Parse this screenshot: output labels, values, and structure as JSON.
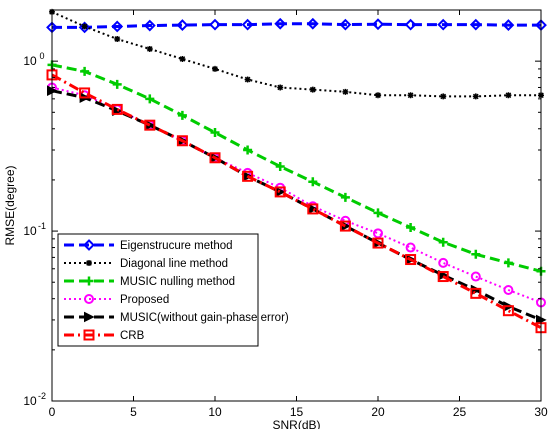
{
  "chart_data": {
    "type": "line",
    "xlabel": "SNR(dB)",
    "ylabel": "RMSE(degree)",
    "xlim": [
      0,
      30
    ],
    "ylim": [
      0.01,
      2
    ],
    "yscale": "log",
    "grid": false,
    "legend_position": "bottom-left",
    "x_ticks": [
      "0",
      "5",
      "10",
      "15",
      "20",
      "25",
      "30"
    ],
    "y_ticks": [
      {
        "value": 0.01,
        "base": "10",
        "exp": "-2"
      },
      {
        "value": 0.1,
        "base": "10",
        "exp": "-1"
      },
      {
        "value": 1,
        "base": "10",
        "exp": "0"
      }
    ],
    "series": [
      {
        "name": "Eigenstrucure method",
        "color": "#0000ff",
        "dash": "10,5",
        "marker": "diamond",
        "width": 3,
        "x": [
          0,
          2,
          4,
          6,
          8,
          10,
          12,
          14,
          16,
          18,
          20,
          22,
          24,
          26,
          28,
          30
        ],
        "y": [
          1.58,
          1.58,
          1.6,
          1.62,
          1.63,
          1.64,
          1.64,
          1.66,
          1.66,
          1.64,
          1.65,
          1.64,
          1.64,
          1.64,
          1.63,
          1.63
        ]
      },
      {
        "name": "Diagonal line method",
        "color": "#000000",
        "dash": "2,3",
        "marker": "star",
        "width": 2,
        "x": [
          0,
          2,
          4,
          6,
          8,
          10,
          12,
          14,
          16,
          18,
          20,
          22,
          24,
          26,
          28,
          30
        ],
        "y": [
          1.95,
          1.6,
          1.35,
          1.18,
          1.03,
          0.9,
          0.78,
          0.7,
          0.68,
          0.66,
          0.63,
          0.63,
          0.62,
          0.62,
          0.63,
          0.63
        ]
      },
      {
        "name": "MUSIC nulling method",
        "color": "#00cc00",
        "dash": "10,5",
        "marker": "plus",
        "width": 3,
        "x": [
          0,
          2,
          4,
          6,
          8,
          10,
          12,
          14,
          16,
          18,
          20,
          22,
          24,
          26,
          28,
          30
        ],
        "y": [
          0.95,
          0.87,
          0.73,
          0.6,
          0.48,
          0.38,
          0.3,
          0.24,
          0.195,
          0.158,
          0.128,
          0.105,
          0.086,
          0.073,
          0.065,
          0.058
        ]
      },
      {
        "name": "Proposed",
        "color": "#ff00ff",
        "dash": "2,3",
        "marker": "circle",
        "width": 2,
        "x": [
          0,
          2,
          4,
          6,
          8,
          10,
          12,
          14,
          16,
          18,
          20,
          22,
          24,
          26,
          28,
          30
        ],
        "y": [
          0.7,
          0.63,
          0.52,
          0.42,
          0.34,
          0.27,
          0.22,
          0.18,
          0.14,
          0.115,
          0.097,
          0.08,
          0.065,
          0.054,
          0.045,
          0.038
        ]
      },
      {
        "name": "MUSIC(without gain-phase error)",
        "color": "#000000",
        "dash": "10,5",
        "marker": "triangle-right",
        "width": 3,
        "x": [
          0,
          2,
          4,
          6,
          8,
          10,
          12,
          14,
          16,
          18,
          20,
          22,
          24,
          26,
          28,
          30
        ],
        "y": [
          0.67,
          0.61,
          0.51,
          0.42,
          0.34,
          0.27,
          0.21,
          0.17,
          0.135,
          0.107,
          0.085,
          0.068,
          0.055,
          0.045,
          0.036,
          0.03
        ]
      },
      {
        "name": "CRB",
        "color": "#ff0000",
        "dash": "10,4,2,4",
        "marker": "square",
        "width": 3,
        "x": [
          0,
          2,
          4,
          6,
          8,
          10,
          12,
          14,
          16,
          18,
          20,
          22,
          24,
          26,
          28,
          30
        ],
        "y": [
          0.83,
          0.65,
          0.52,
          0.42,
          0.34,
          0.27,
          0.21,
          0.17,
          0.135,
          0.107,
          0.085,
          0.068,
          0.054,
          0.043,
          0.034,
          0.027
        ]
      }
    ]
  }
}
